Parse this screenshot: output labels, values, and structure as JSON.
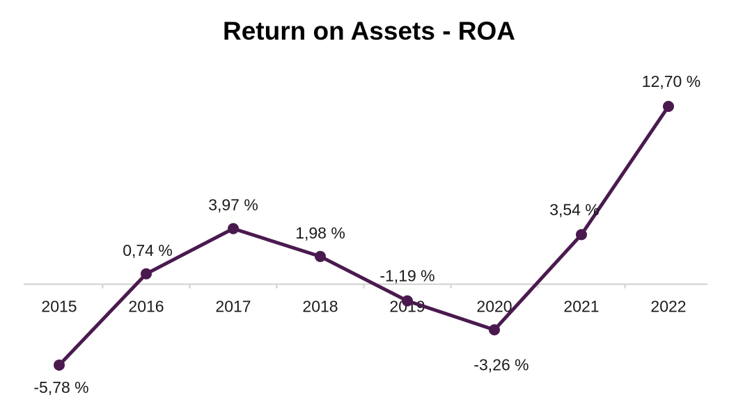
{
  "chart_data": {
    "type": "line",
    "title": "Return on Assets - ROA",
    "xlabel": "",
    "ylabel": "",
    "categories": [
      "2015",
      "2016",
      "2017",
      "2018",
      "2019",
      "2020",
      "2021",
      "2022"
    ],
    "series": [
      {
        "values": [
          -5.78,
          0.74,
          3.97,
          1.98,
          -1.19,
          -3.26,
          3.54,
          12.7
        ],
        "labels": [
          "-5,78 %",
          "0,74 %",
          "3,97 %",
          "1,98 %",
          "-1,19 %",
          "-3,26 %",
          "3,54 %",
          "12,70 %"
        ],
        "color": "#4a1a4f"
      }
    ],
    "ylim": [
      -5.78,
      12.7
    ],
    "grid": false,
    "legend": "none",
    "axis_color": "#d0d0d0"
  }
}
